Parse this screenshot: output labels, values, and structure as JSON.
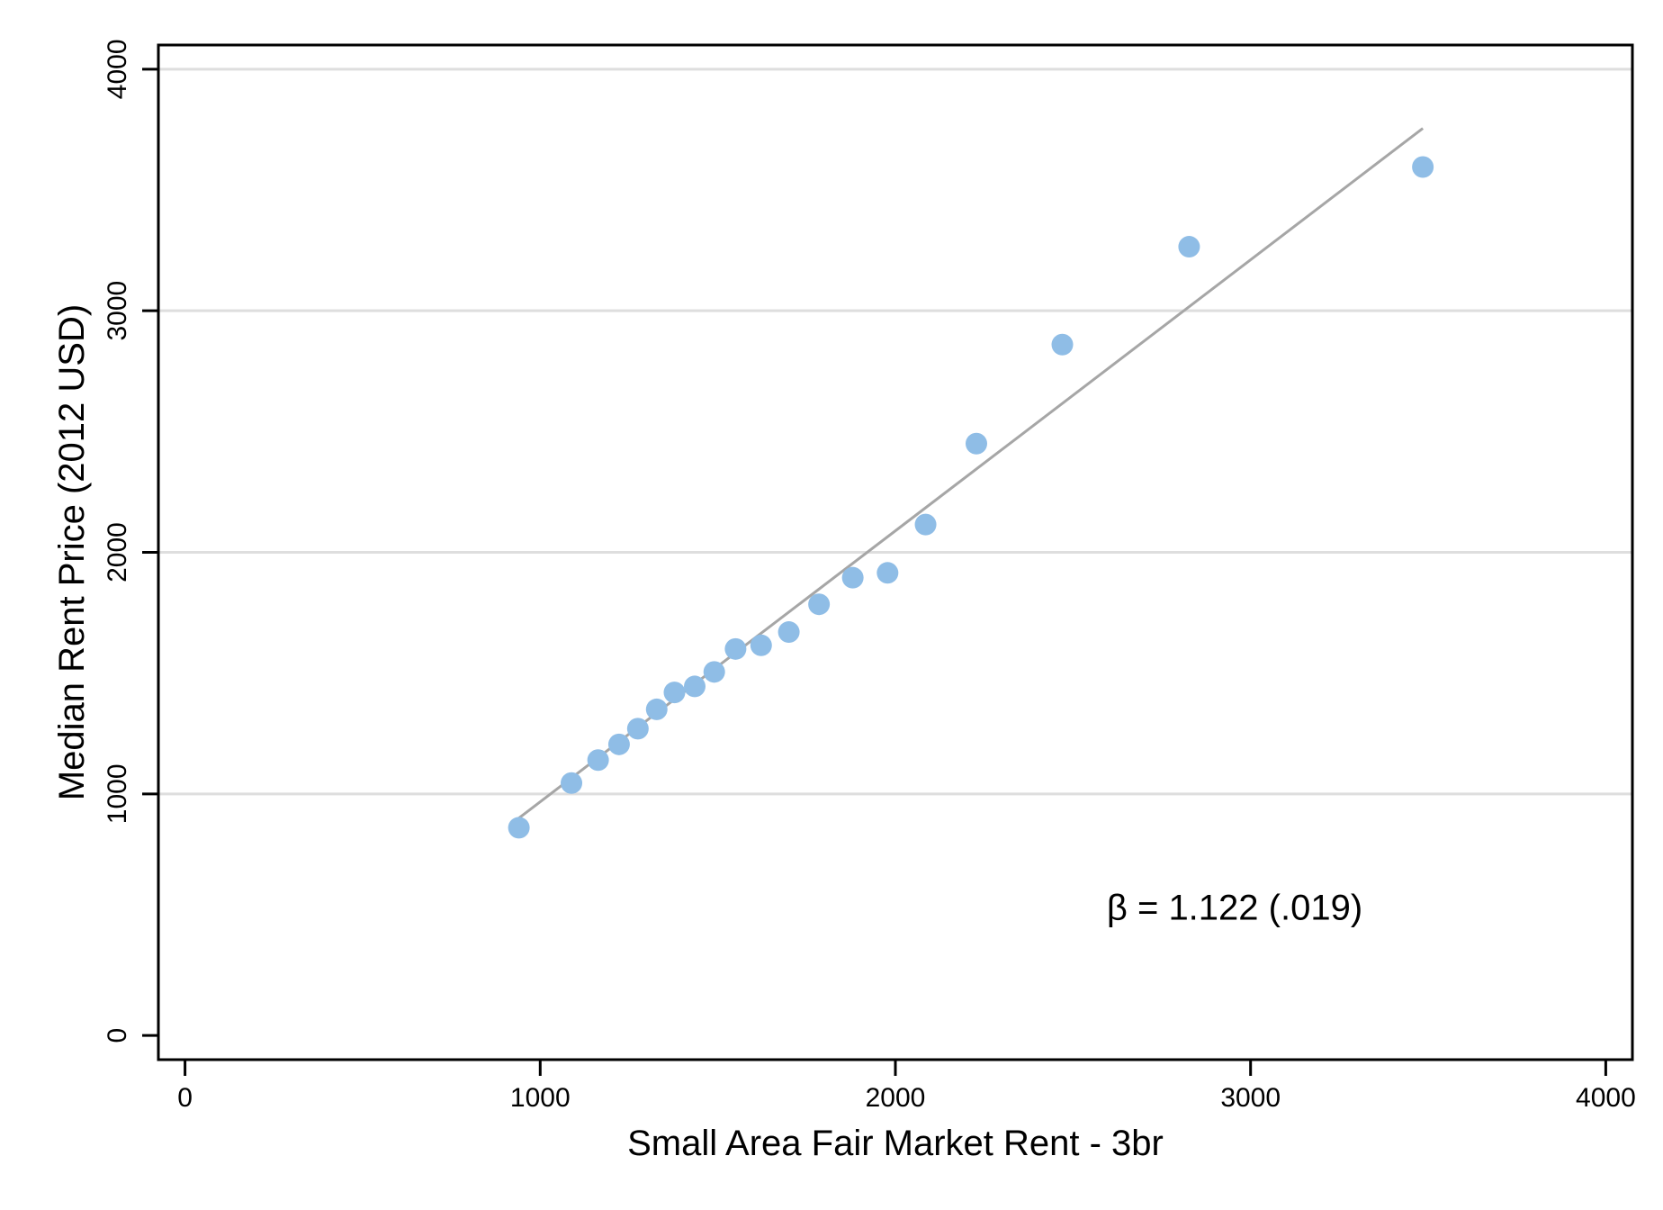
{
  "chart_data": {
    "type": "scatter",
    "xlabel": "Small Area Fair Market Rent - 3br",
    "ylabel": "Median Rent Price (2012 USD)",
    "xlim": [
      -75,
      4075
    ],
    "ylim": [
      -100,
      4100
    ],
    "xticks": [
      0,
      1000,
      2000,
      3000,
      4000
    ],
    "yticks": [
      0,
      1000,
      2000,
      3000,
      4000
    ],
    "xtick_labels": [
      "0",
      "1000",
      "2000",
      "3000",
      "4000"
    ],
    "ytick_labels": [
      "0",
      "1000",
      "2000",
      "3000",
      "4000"
    ],
    "grid": "horizontal",
    "points": [
      {
        "x": 940,
        "y": 860
      },
      {
        "x": 1088,
        "y": 1045
      },
      {
        "x": 1163,
        "y": 1140
      },
      {
        "x": 1222,
        "y": 1205
      },
      {
        "x": 1275,
        "y": 1270
      },
      {
        "x": 1328,
        "y": 1350
      },
      {
        "x": 1378,
        "y": 1420
      },
      {
        "x": 1435,
        "y": 1445
      },
      {
        "x": 1490,
        "y": 1505
      },
      {
        "x": 1550,
        "y": 1600
      },
      {
        "x": 1622,
        "y": 1615
      },
      {
        "x": 1700,
        "y": 1670
      },
      {
        "x": 1785,
        "y": 1785
      },
      {
        "x": 1880,
        "y": 1895
      },
      {
        "x": 1978,
        "y": 1915
      },
      {
        "x": 2085,
        "y": 2115
      },
      {
        "x": 2228,
        "y": 2450
      },
      {
        "x": 2470,
        "y": 2860
      },
      {
        "x": 2827,
        "y": 3265
      },
      {
        "x": 3485,
        "y": 3595
      }
    ],
    "fit_line": {
      "x0": 940,
      "y0": 900,
      "x1": 3485,
      "y1": 3755
    },
    "annotation": {
      "text": "β = 1.122 (.019)",
      "x": 2595,
      "y": 480
    },
    "colors": {
      "points": "#8fbde6",
      "fit_line": "#a6a6a6",
      "grid": "#dedede",
      "axes": "#000000"
    }
  }
}
